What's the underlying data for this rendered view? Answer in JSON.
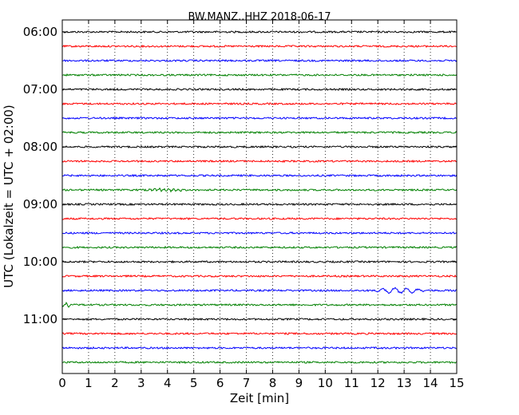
{
  "chart_data": {
    "type": "line",
    "title": "BW.MANZ..HHZ 2018-06-17",
    "xlabel": "Zeit  [min]",
    "ylabel": "UTC (Lokalzeit = UTC + 02:00)",
    "xlim": [
      0,
      15
    ],
    "x_ticks": [
      "0",
      "1",
      "2",
      "3",
      "4",
      "5",
      "6",
      "7",
      "8",
      "9",
      "10",
      "11",
      "12",
      "13",
      "14",
      "15"
    ],
    "y_ticks": [
      "06:00",
      "07:00",
      "08:00",
      "09:00",
      "10:00",
      "11:00"
    ],
    "grid": "vertical dotted",
    "trace_interval_min": 15,
    "colors": [
      "#000000",
      "#ff0000",
      "#0000ff",
      "#008000"
    ],
    "series": [
      {
        "start": "06:00",
        "color": "#000000"
      },
      {
        "start": "06:15",
        "color": "#ff0000"
      },
      {
        "start": "06:30",
        "color": "#0000ff"
      },
      {
        "start": "06:45",
        "color": "#008000"
      },
      {
        "start": "07:00",
        "color": "#000000"
      },
      {
        "start": "07:15",
        "color": "#ff0000"
      },
      {
        "start": "07:30",
        "color": "#0000ff"
      },
      {
        "start": "07:45",
        "color": "#008000"
      },
      {
        "start": "08:00",
        "color": "#000000"
      },
      {
        "start": "08:15",
        "color": "#ff0000"
      },
      {
        "start": "08:30",
        "color": "#0000ff"
      },
      {
        "start": "08:45",
        "color": "#008000"
      },
      {
        "start": "09:00",
        "color": "#000000"
      },
      {
        "start": "09:15",
        "color": "#ff0000"
      },
      {
        "start": "09:30",
        "color": "#0000ff"
      },
      {
        "start": "09:45",
        "color": "#008000"
      },
      {
        "start": "10:00",
        "color": "#000000"
      },
      {
        "start": "10:15",
        "color": "#ff0000"
      },
      {
        "start": "10:30",
        "color": "#0000ff"
      },
      {
        "start": "10:45",
        "color": "#008000"
      },
      {
        "start": "11:00",
        "color": "#000000"
      },
      {
        "start": "11:15",
        "color": "#ff0000"
      },
      {
        "start": "11:30",
        "color": "#0000ff"
      },
      {
        "start": "11:45",
        "color": "#008000"
      }
    ]
  }
}
